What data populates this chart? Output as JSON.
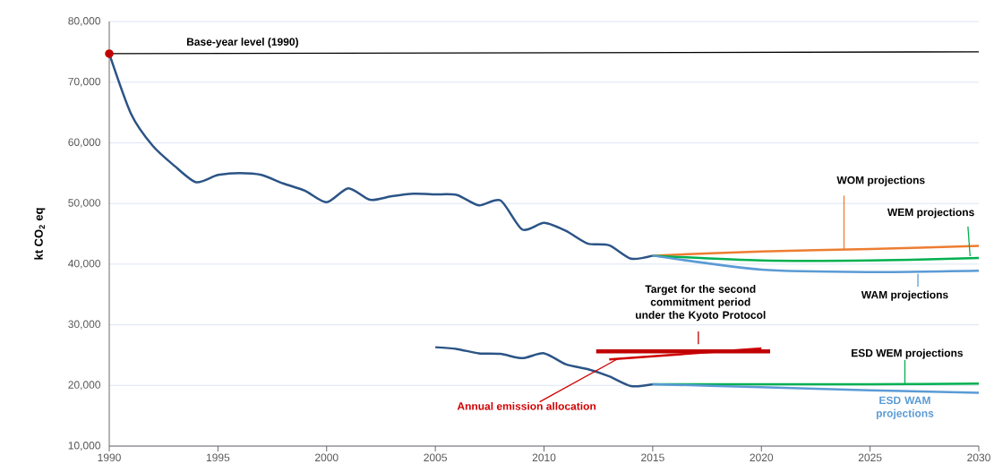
{
  "chart_data": {
    "type": "line",
    "ylabel": "kt CO$_{2}$ eq",
    "xlim": [
      1990,
      2030
    ],
    "ylim": [
      10000,
      80000
    ],
    "xticks": [
      1990,
      1995,
      2000,
      2005,
      2010,
      2015,
      2020,
      2025,
      2030
    ],
    "yticks": [
      {
        "value": 10000,
        "label": "10,000"
      },
      {
        "value": 20000,
        "label": "20,000"
      },
      {
        "value": 30000,
        "label": "30,000"
      },
      {
        "value": 40000,
        "label": "40,000"
      },
      {
        "value": 50000,
        "label": "50,000"
      },
      {
        "value": 60000,
        "label": "60,000"
      },
      {
        "value": 70000,
        "label": "70,000"
      },
      {
        "value": 80000,
        "label": "80,000"
      }
    ],
    "grid": "y",
    "marker": "none",
    "series": [
      {
        "color": "#2b5486",
        "x": [
          1990,
          1991,
          1992,
          1993,
          1994,
          1995,
          1996,
          1997,
          1998,
          1999,
          2000,
          2001,
          2002,
          2003,
          2004,
          2005,
          2006,
          2007,
          2008,
          2009,
          2010,
          2011,
          2012,
          2013,
          2014,
          2015
        ],
        "values": [
          74700,
          64800,
          59500,
          56200,
          53500,
          54700,
          55000,
          54700,
          53300,
          52100,
          50200,
          52500,
          50600,
          51200,
          51600,
          51500,
          51400,
          49700,
          50500,
          45700,
          46800,
          45500,
          43400,
          43100,
          40900,
          41400
        ]
      },
      {
        "name": "Base-year level (1990)",
        "color": "#000000",
        "x": [
          1990,
          2030
        ],
        "values": [
          74700,
          75000
        ]
      },
      {
        "type": "scatter",
        "marker": "circle",
        "color": "#c00000",
        "x": [
          1990
        ],
        "values": [
          74700
        ]
      },
      {
        "name": "WOM projections",
        "color": "#ed7d31",
        "x": [
          2015,
          2020,
          2025,
          2030
        ],
        "values": [
          41400,
          42100,
          42500,
          43000
        ]
      },
      {
        "name": "WEM projections",
        "color": "#00b050",
        "x": [
          2015,
          2020,
          2025,
          2030
        ],
        "values": [
          41400,
          40600,
          40600,
          41000
        ]
      },
      {
        "name": "WAM projections",
        "color": "#5b9bd5",
        "x": [
          2015,
          2020,
          2025,
          2030
        ],
        "values": [
          41400,
          39100,
          38700,
          38900
        ]
      },
      {
        "color": "#2b5486",
        "x": [
          2005,
          2006,
          2007,
          2008,
          2009,
          2010,
          2011,
          2012,
          2013,
          2014,
          2015
        ],
        "values": [
          26300,
          26000,
          25300,
          25200,
          24500,
          25300,
          23500,
          22700,
          21500,
          19900,
          20200
        ]
      },
      {
        "name": "Annual emission allocation",
        "color": "#d00000",
        "x": [
          2013,
          2020
        ],
        "values": [
          24300,
          26100
        ]
      },
      {
        "name": "Target for the second commitment period under the Kyoto Protocol",
        "color": "#c00000",
        "x": [
          2012.4,
          2020.4
        ],
        "values": [
          25600,
          25600
        ]
      },
      {
        "name": "ESD WEM projections",
        "color": "#00b050",
        "x": [
          2015,
          2020,
          2025,
          2030
        ],
        "values": [
          20200,
          20200,
          20200,
          20300
        ]
      },
      {
        "name": "ESD WAM projections",
        "color": "#5b9bd5",
        "x": [
          2015,
          2020,
          2025,
          2030
        ],
        "values": [
          20200,
          19700,
          19200,
          18800
        ]
      }
    ]
  }
}
